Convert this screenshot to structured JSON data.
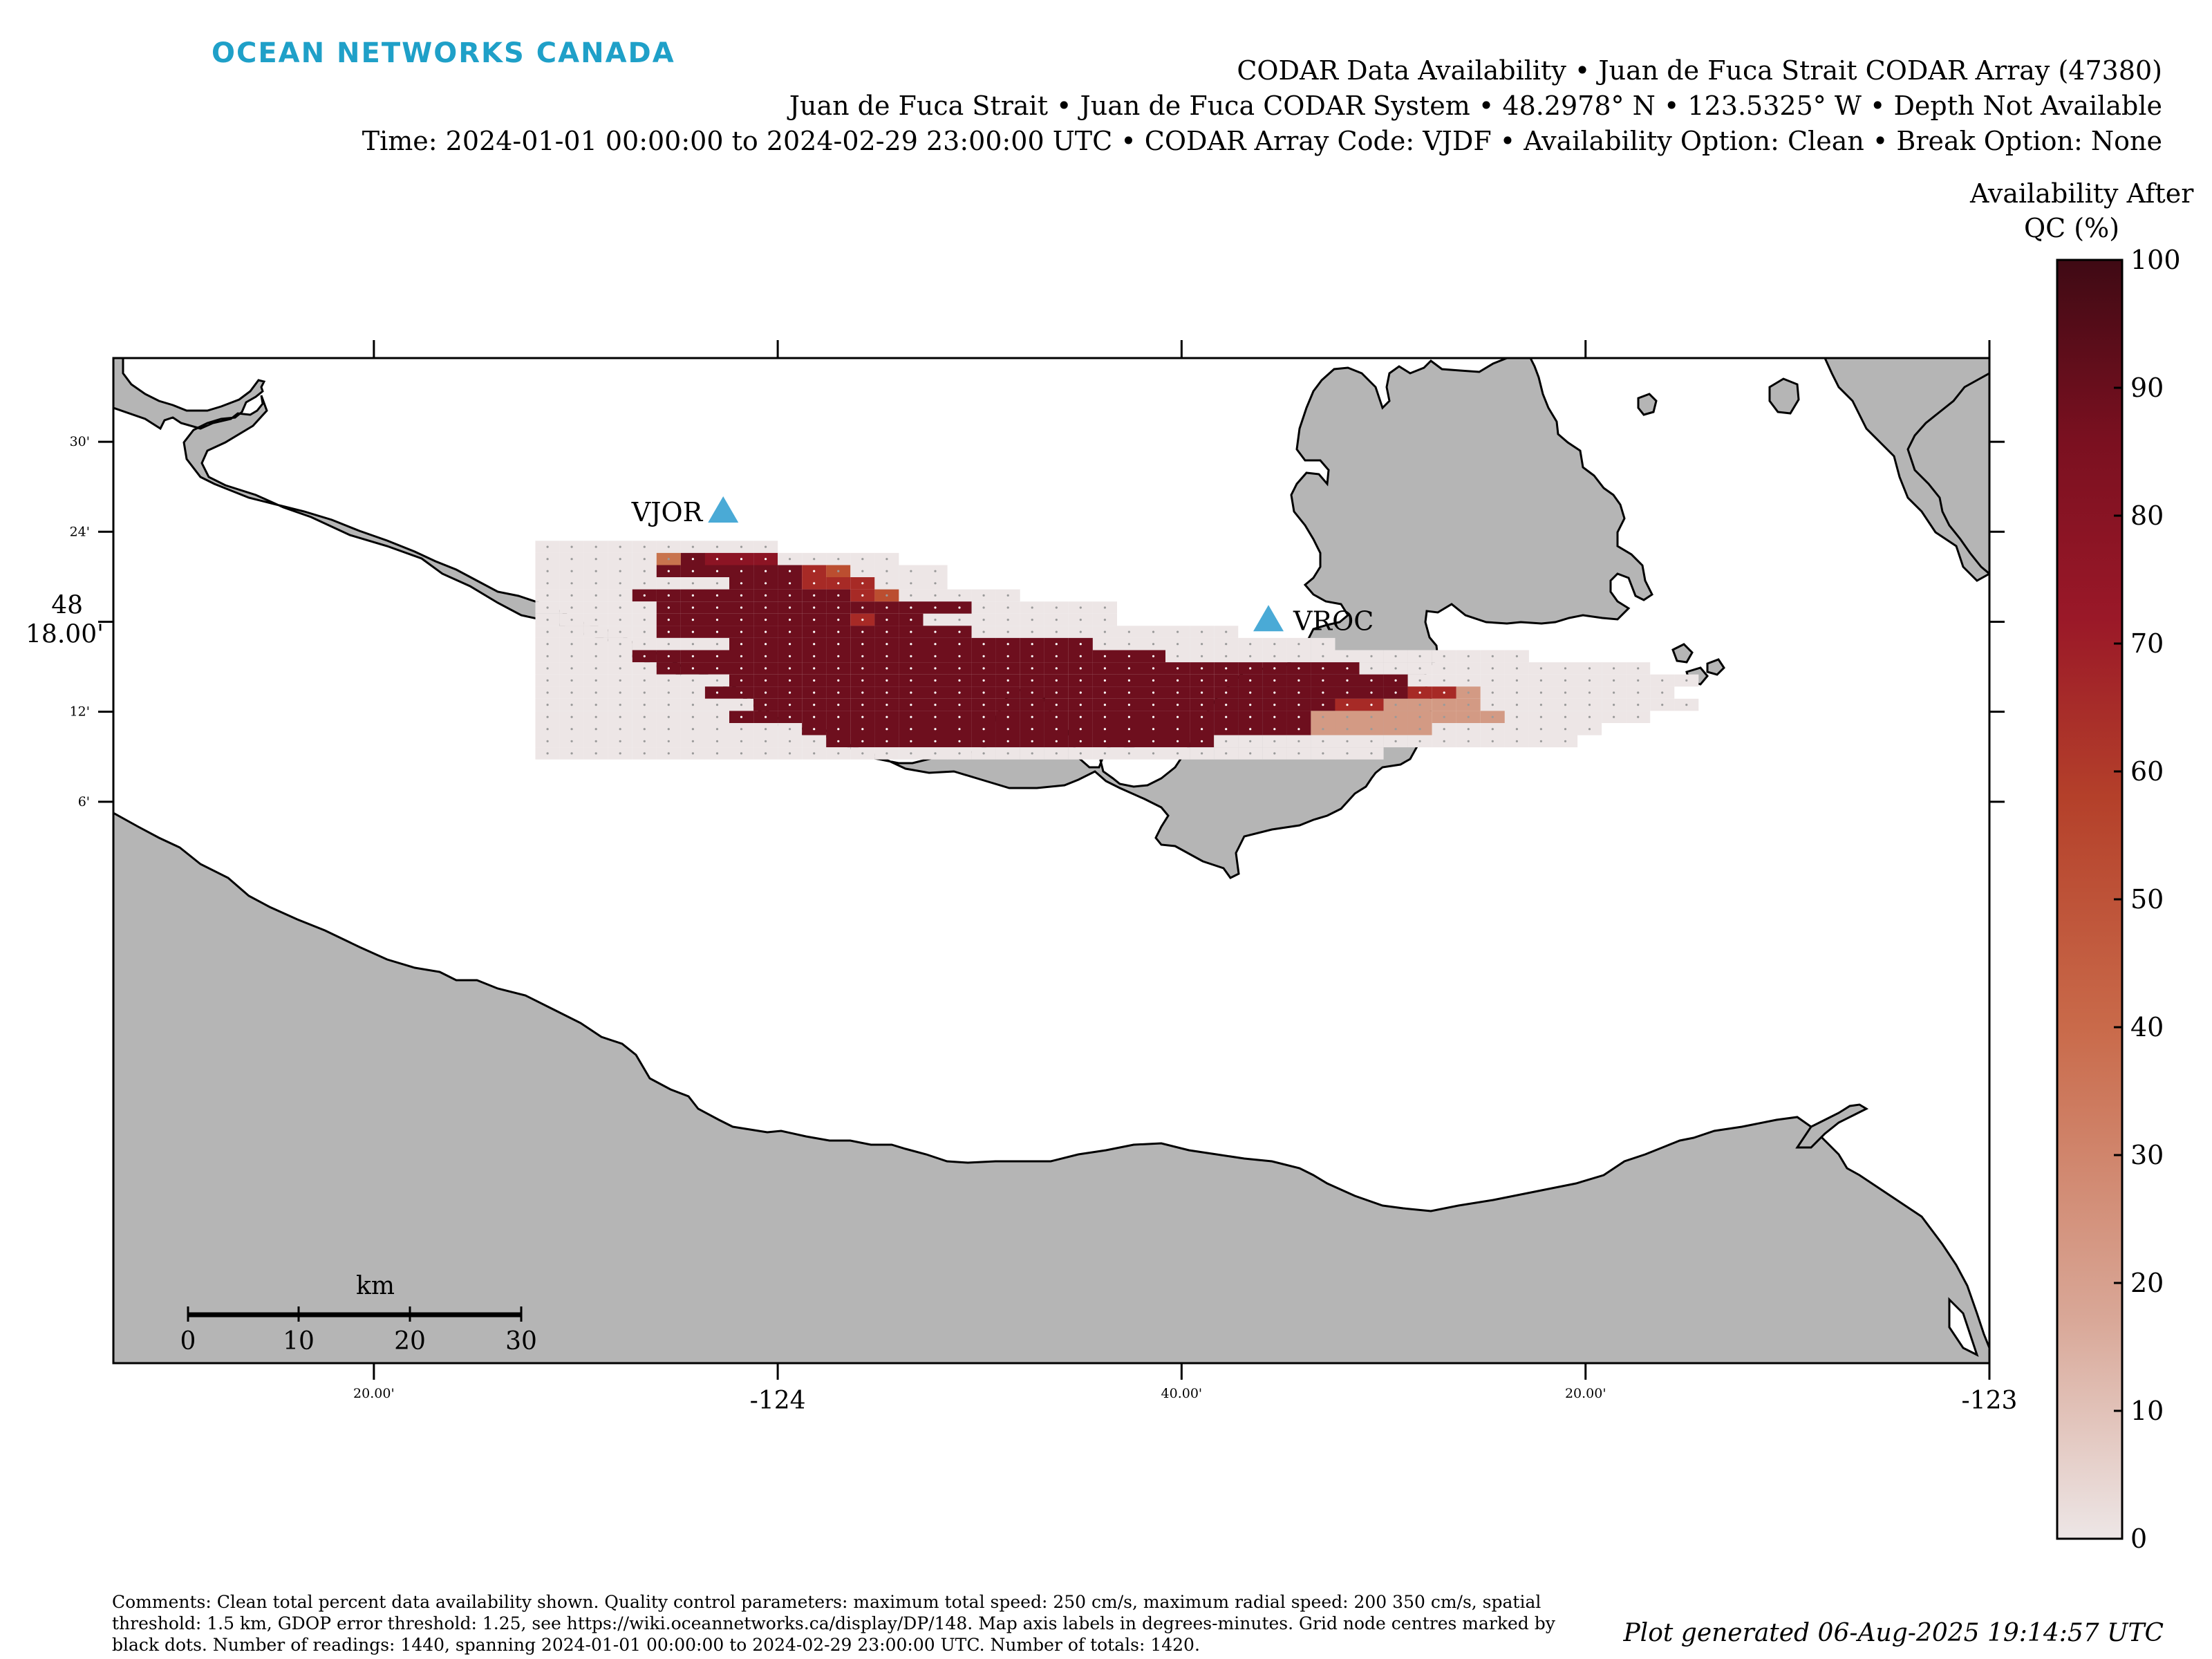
{
  "logo": "OCEAN NETWORKS CANADA",
  "header": {
    "line1": "CODAR Data Availability • Juan de Fuca Strait CODAR Array (47380)",
    "line2": "Juan de Fuca Strait • Juan de Fuca CODAR System • 48.2978° N • 123.5325° W • Depth Not Available",
    "line3": "Time: 2024-01-01 00:00:00 to 2024-02-29 23:00:00 UTC • CODAR Array Code: VJDF • Availability Option: Clean • Break Option: None"
  },
  "colorbar": {
    "title_line1": "Availability After",
    "title_line2": "QC (%)",
    "ticks": [
      "100",
      "90",
      "80",
      "70",
      "60",
      "50",
      "40",
      "30",
      "20",
      "10",
      "0"
    ],
    "min": 0,
    "max": 100,
    "colors": [
      "#ede6e6",
      "#d9a898",
      "#c96a4a",
      "#b4402a",
      "#9a1828",
      "#7a1020",
      "#3f0a14"
    ]
  },
  "map": {
    "land_color": "#b5b5b5",
    "water_color": "#ffffff",
    "station_color": "#4aaad6",
    "stations": [
      {
        "label": "VJOR",
        "lon": -124.045,
        "lat": 48.4225
      },
      {
        "label": "VROC",
        "lon": -123.595,
        "lat": 48.3017
      }
    ],
    "y_ticks": [
      {
        "label": "30'",
        "lat": 48.5
      },
      {
        "label": "24'",
        "lat": 48.4
      },
      {
        "label": "48",
        "label2": "18.00'",
        "lat": 48.3
      },
      {
        "label": "12'",
        "lat": 48.2
      },
      {
        "label": "6'",
        "lat": 48.1
      }
    ],
    "x_ticks": [
      {
        "label": "20.00'",
        "lon": -124.3333,
        "style": "small"
      },
      {
        "label": "-124",
        "lon": -124.0,
        "style": "big"
      },
      {
        "label": "40.00'",
        "lon": -123.6667,
        "style": "small"
      },
      {
        "label": "20.00'",
        "lon": -123.3333,
        "style": "small"
      },
      {
        "label": "-123",
        "lon": -123.0,
        "style": "big"
      }
    ],
    "scalebar": {
      "title": "km",
      "labels": [
        "0",
        "10",
        "20",
        "30"
      ]
    }
  },
  "footer": {
    "comments": "Comments: Clean total percent data availability shown. Quality control parameters: maximum total speed: 250 cm/s, maximum radial speed: 200 350 cm/s, spatial threshold: 1.5 km, GDOP error threshold: 1.25, see https://wiki.oceannetworks.ca/display/DP/148. Map axis labels in degrees-minutes. Grid node centres marked by black dots. Number of readings: 1440, spanning 2024-01-01 00:00:00 to 2024-02-29 23:00:00 UTC. Number of totals: 1420.",
    "generated": "Plot generated 06-Aug-2025 19:14:57 UTC"
  },
  "grid": {
    "lon0": -124.2,
    "lat0": 48.39,
    "dlon": 0.02,
    "dlat": 0.0135,
    "legend": "0-9 = availability levels (0 none ... 9 highest), '.' = no data",
    "rows": [
      "0000000000",
      "000004877700000",
      "00000888888650000",
      "00000000888666000",
      "00008888888886500000",
      "000008888888888888000000",
      "000008888888868800000000",
      "00000888888888888800000000000",
      "000000008888888888888880000000000",
      "00008888888888888888888888000000000000000",
      "0000088888888888888888888888888888000000000000",
      "000000008888888888888888888888888888000000000000",
      "00000008888888888888888888888888888866300000000",
      "000000000888888888888888888888888663333000000000",
      "0000000088888888888888888888888833333333000000",
      "00000000000888888888888888888888333330000000",
      "0000000000008888888888888888000000000000000",
      "00000000000000000000000000000000000"
    ]
  }
}
